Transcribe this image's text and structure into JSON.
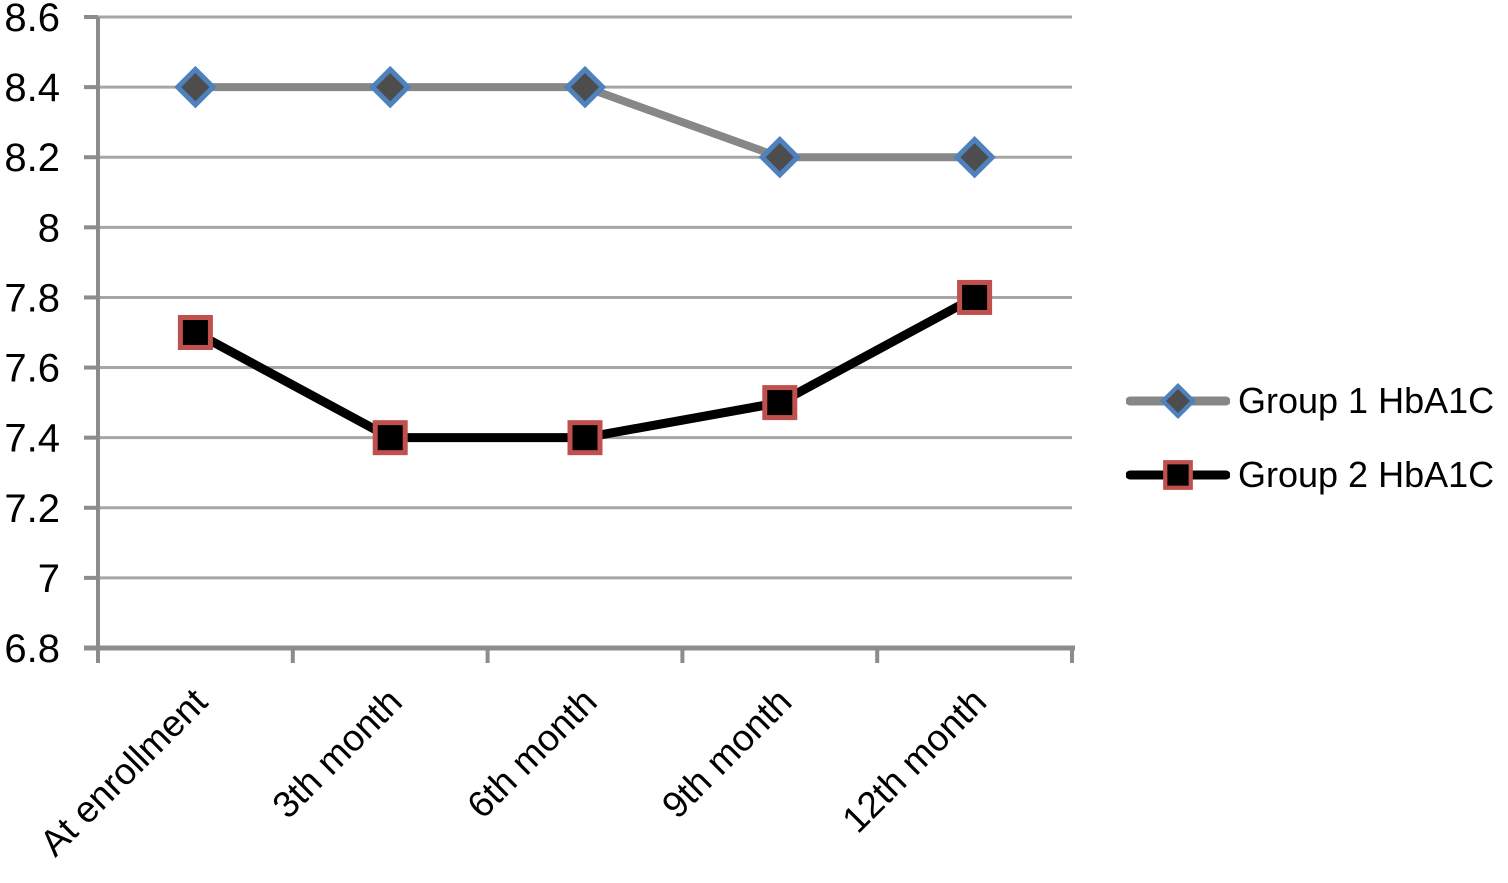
{
  "chart_data": {
    "type": "line",
    "categories": [
      "At enrollment",
      "3th month",
      "6th month",
      "9th month",
      "12th month"
    ],
    "series": [
      {
        "name": "Group 1 HbA1C",
        "values": [
          8.4,
          8.4,
          8.4,
          8.2,
          8.2
        ],
        "color": "#878787",
        "line_width": 8,
        "marker": "diamond",
        "marker_fill": "#4d4d4d",
        "marker_border": "#4f81bd"
      },
      {
        "name": "Group 2 HbA1C",
        "values": [
          7.7,
          7.4,
          7.4,
          7.5,
          7.8
        ],
        "color": "#000000",
        "line_width": 9,
        "marker": "square",
        "marker_fill": "#000000",
        "marker_border": "#c0504d"
      }
    ],
    "title": "",
    "xlabel": "",
    "ylabel": "",
    "ylim": [
      6.8,
      8.6
    ],
    "ytick_step": 0.2,
    "ytick_labels": [
      "8.6",
      "8.4",
      "8.2",
      "8",
      "7.8",
      "7.6",
      "7.4",
      "7.2",
      "7",
      "6.8"
    ],
    "grid": true,
    "grid_color": "#a6a6a6",
    "axis_color": "#8c8c8c",
    "text_color": "#000000",
    "legend_position": "right"
  }
}
